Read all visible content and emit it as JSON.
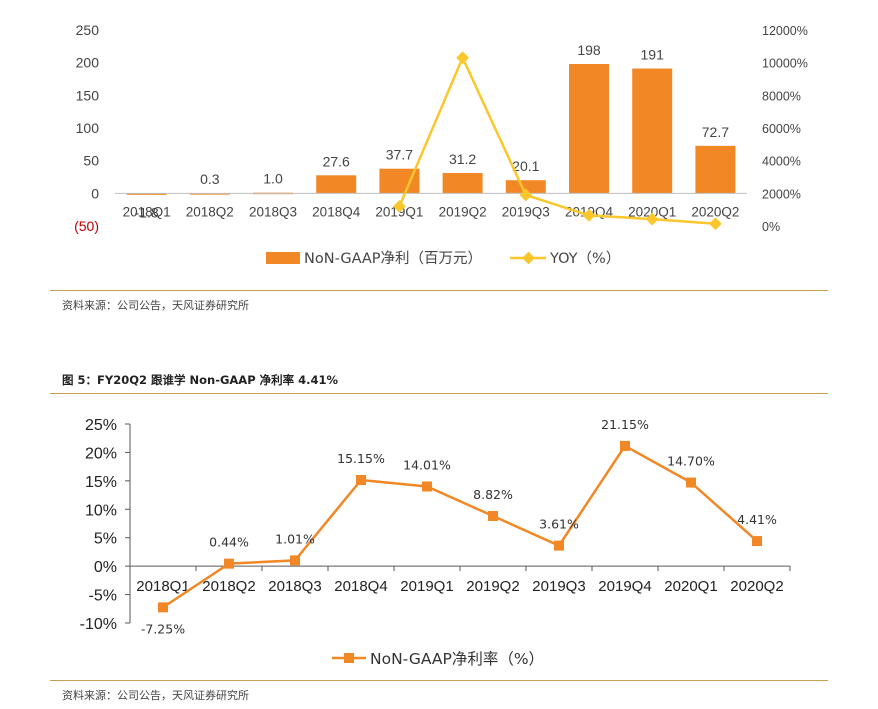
{
  "source_1": "资料来源：公司公告，天风证券研究所",
  "figure5_title": "图 5：FY20Q2 跟谁学 Non-GAAP 净利率 4.41%",
  "source_2": "资料来源：公司公告，天风证券研究所",
  "colors": {
    "bar": "#f18825",
    "yoy": "#fcc72c",
    "margin": "#f18825",
    "rule": "#c8a050"
  },
  "chart_data": [
    {
      "type": "bar",
      "categories": [
        "2018Q1",
        "2018Q2",
        "2018Q3",
        "2018Q4",
        "2019Q1",
        "2019Q2",
        "2019Q3",
        "2019Q4",
        "2020Q1",
        "2020Q2"
      ],
      "series": [
        {
          "name": "NoN-GAAP净利（百万元）",
          "type": "bar",
          "axis": "left",
          "values": [
            -1.8,
            0.3,
            1.0,
            27.6,
            37.7,
            31.2,
            20.1,
            198,
            191,
            72.7
          ],
          "labels": [
            "-1.8",
            "0.3",
            "1.0",
            "27.6",
            "37.7",
            "31.2",
            "20.1",
            "198",
            "191",
            "72.7"
          ]
        },
        {
          "name": "YOY（%）",
          "type": "line",
          "axis": "right",
          "values": [
            null,
            null,
            null,
            null,
            1200,
            10300,
            1900,
            650,
            420,
            140
          ]
        }
      ],
      "left_ticks": [
        "250",
        "200",
        "150",
        "100",
        "50",
        "0",
        "(50)"
      ],
      "left_tick_values": [
        250,
        200,
        150,
        100,
        50,
        0,
        -50
      ],
      "right_ticks": [
        "12000%",
        "10000%",
        "8000%",
        "6000%",
        "4000%",
        "2000%",
        "0%"
      ],
      "right_tick_values": [
        12000,
        10000,
        8000,
        6000,
        4000,
        2000,
        0
      ],
      "ylim_left": [
        -50,
        250
      ],
      "ylim_right": [
        0,
        12000
      ],
      "legend": "bottom"
    },
    {
      "type": "line",
      "categories": [
        "2018Q1",
        "2018Q2",
        "2018Q3",
        "2018Q4",
        "2019Q1",
        "2019Q2",
        "2019Q3",
        "2019Q4",
        "2020Q1",
        "2020Q2"
      ],
      "series": [
        {
          "name": "NoN-GAAP净利率（%）",
          "values": [
            -7.25,
            0.44,
            1.01,
            15.15,
            14.01,
            8.82,
            3.61,
            21.15,
            14.7,
            4.41
          ],
          "labels": [
            "-7.25%",
            "0.44%",
            "1.01%",
            "15.15%",
            "14.01%",
            "8.82%",
            "3.61%",
            "21.15%",
            "14.70%",
            "4.41%"
          ]
        }
      ],
      "y_ticks": [
        "25%",
        "20%",
        "15%",
        "10%",
        "5%",
        "0%",
        "-5%",
        "-10%"
      ],
      "y_tick_values": [
        25,
        20,
        15,
        10,
        5,
        0,
        -5,
        -10
      ],
      "ylim": [
        -10,
        25
      ],
      "legend": "bottom"
    }
  ]
}
